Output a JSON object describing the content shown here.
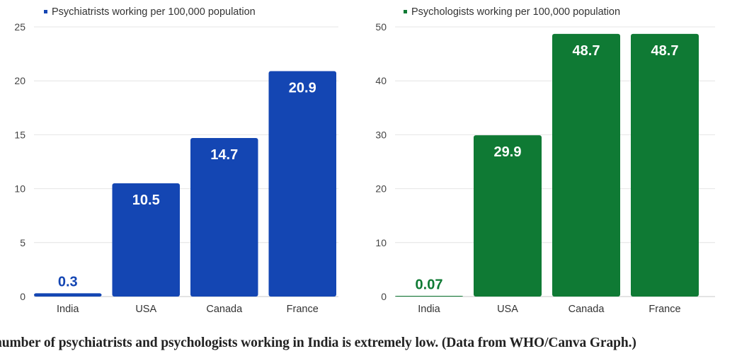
{
  "chart_data": [
    {
      "type": "bar",
      "categories": [
        "India",
        "USA",
        "Canada",
        "France"
      ],
      "series": [
        {
          "name": "Psychiatrists working per 100,000 population",
          "values": [
            0.3,
            10.5,
            14.7,
            20.9
          ]
        }
      ],
      "data_labels": [
        "0.3",
        "10.5",
        "14.7",
        "20.9"
      ],
      "ylim": [
        0,
        25
      ],
      "yticks": [
        0,
        5,
        10,
        15,
        20,
        25
      ],
      "grid": true,
      "legend": "top-left",
      "color": "#1446b3"
    },
    {
      "type": "bar",
      "categories": [
        "India",
        "USA",
        "Canada",
        "France"
      ],
      "series": [
        {
          "name": "Psychologists working per 100,000 population",
          "values": [
            0.07,
            29.9,
            48.7,
            48.7
          ]
        }
      ],
      "data_labels": [
        "0.07",
        "29.9",
        "48.7",
        "48.7"
      ],
      "ylim": [
        0,
        50
      ],
      "yticks": [
        0,
        10,
        20,
        30,
        40,
        50
      ],
      "grid": true,
      "legend": "top-left",
      "color": "#0f7a34"
    }
  ],
  "caption": "number of psychiatrists and psychologists working in India is extremely low. (Data from WHO/Canva Graph.)"
}
